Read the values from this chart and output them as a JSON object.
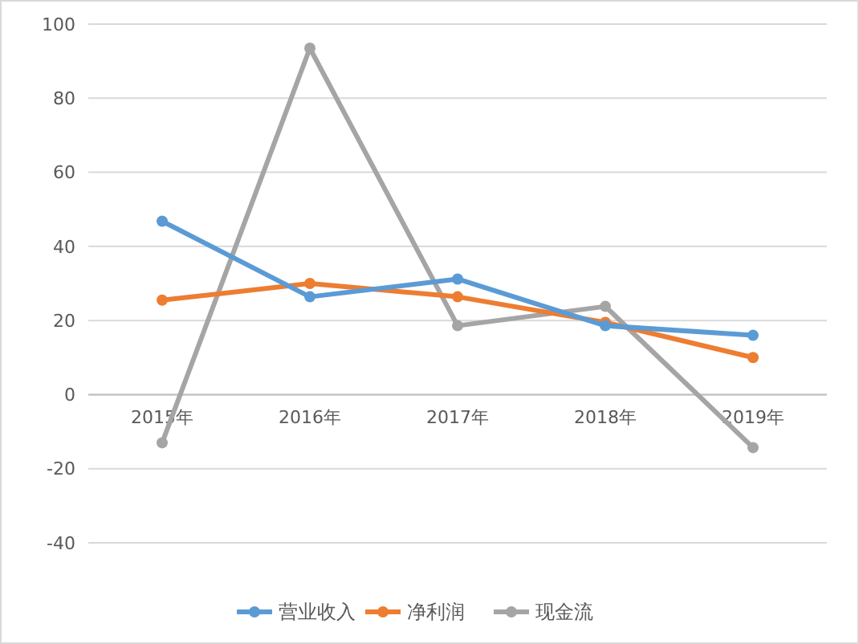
{
  "chart_data": {
    "type": "line",
    "categories": [
      "2015年",
      "2016年",
      "2017年",
      "2018年",
      "2019年"
    ],
    "series": [
      {
        "name": "营业收入",
        "color": "#5b9bd5",
        "values": [
          46.8,
          26.4,
          31.2,
          18.6,
          16
        ]
      },
      {
        "name": "净利润",
        "color": "#ed7d31",
        "values": [
          25.5,
          30,
          26.4,
          19.5,
          10
        ]
      },
      {
        "name": "现金流",
        "color": "#a5a5a5",
        "values": [
          -13,
          93.5,
          18.6,
          23.8,
          -14.3
        ]
      }
    ],
    "ylim": [
      -40,
      100
    ],
    "yticks": [
      -40,
      -20,
      0,
      20,
      40,
      60,
      80,
      100
    ],
    "grid": "y",
    "legend": "bottom",
    "marker": "circle",
    "line_style": "solid"
  }
}
